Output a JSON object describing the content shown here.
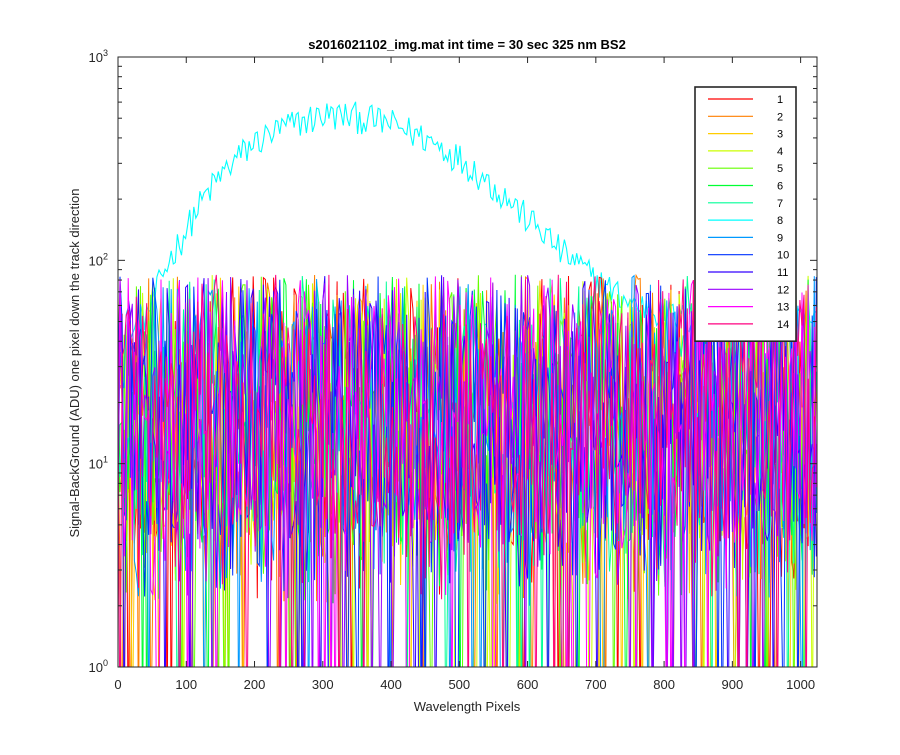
{
  "chart_data": {
    "type": "line",
    "title": "s2016021102_img.mat int time = 30 sec  325 nm BS2",
    "xlabel": "Wavelength Pixels",
    "ylabel": "Signal-BackGround (ADU) one pixel down the track direction",
    "xlim": [
      0,
      1024
    ],
    "ylim": [
      1,
      1000
    ],
    "yscale": "log",
    "grid": false,
    "legend_position": "top-right",
    "x_ticks": [
      "0",
      "100",
      "200",
      "300",
      "400",
      "500",
      "600",
      "700",
      "800",
      "900",
      "1000"
    ],
    "y_tick_labels": [
      {
        "value": 1,
        "base": "10",
        "exp": "0"
      },
      {
        "value": 10,
        "base": "10",
        "exp": "1"
      },
      {
        "value": 100,
        "base": "10",
        "exp": "2"
      },
      {
        "value": 1000,
        "base": "10",
        "exp": "3"
      }
    ],
    "series": [
      {
        "name": "1",
        "color": "#ff0000",
        "profile": "noise"
      },
      {
        "name": "2",
        "color": "#ff7f00",
        "profile": "noise"
      },
      {
        "name": "3",
        "color": "#ffcc00",
        "profile": "noise"
      },
      {
        "name": "4",
        "color": "#ccff00",
        "profile": "noise"
      },
      {
        "name": "5",
        "color": "#66ff00",
        "profile": "noise"
      },
      {
        "name": "6",
        "color": "#00ff33",
        "profile": "noise"
      },
      {
        "name": "7",
        "color": "#00ff99",
        "profile": "noise"
      },
      {
        "name": "8",
        "color": "#00ffff",
        "profile": "peak",
        "approx_x": [
          0,
          50,
          100,
          150,
          200,
          250,
          300,
          350,
          400,
          450,
          500,
          550,
          600,
          650,
          700,
          750,
          800,
          850
        ],
        "approx_y": [
          30,
          60,
          140,
          260,
          380,
          460,
          520,
          510,
          470,
          400,
          320,
          230,
          160,
          110,
          80,
          62,
          55,
          50
        ]
      },
      {
        "name": "9",
        "color": "#0099ff",
        "profile": "noise"
      },
      {
        "name": "10",
        "color": "#0033ff",
        "profile": "noise"
      },
      {
        "name": "11",
        "color": "#3300ff",
        "profile": "noise"
      },
      {
        "name": "12",
        "color": "#9900ff",
        "profile": "noise"
      },
      {
        "name": "13",
        "color": "#ff00ff",
        "profile": "noise"
      },
      {
        "name": "14",
        "color": "#ff0080",
        "profile": "noise"
      }
    ]
  }
}
